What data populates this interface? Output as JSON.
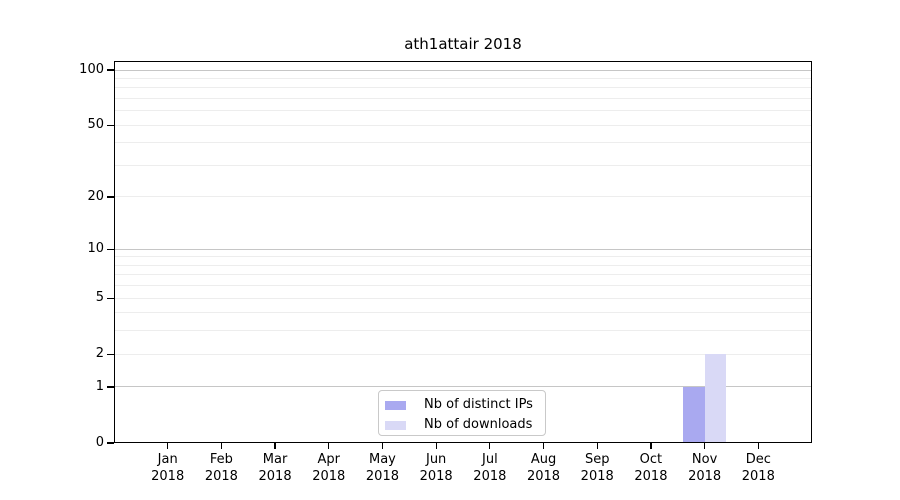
{
  "chart_data": {
    "type": "bar",
    "title": "ath1attair 2018",
    "categories": [
      "Jan",
      "Feb",
      "Mar",
      "Apr",
      "May",
      "Jun",
      "Jul",
      "Aug",
      "Sep",
      "Oct",
      "Nov",
      "Dec"
    ],
    "category_year": "2018",
    "series": [
      {
        "name": "Nb of distinct IPs",
        "color": "#a9a9f0",
        "values": [
          0,
          0,
          0,
          0,
          0,
          0,
          0,
          0,
          0,
          0,
          1,
          0
        ]
      },
      {
        "name": "Nb of downloads",
        "color": "#d9d9f6",
        "values": [
          0,
          0,
          0,
          0,
          0,
          0,
          0,
          0,
          0,
          0,
          2,
          0
        ]
      }
    ],
    "y_axis": {
      "scale": "log1p",
      "ylim": [
        0,
        112
      ],
      "ticks": [
        0,
        1,
        2,
        5,
        10,
        20,
        50,
        100
      ],
      "decade_ticks": [
        1,
        10,
        100
      ],
      "minor_gridline_values": [
        3,
        4,
        6,
        7,
        8,
        9,
        30,
        40,
        60,
        70,
        80,
        90
      ]
    },
    "grid": {
      "major_color": "#c6c6c6",
      "minor_color": "#ededed"
    },
    "legend": {
      "position": "lower center",
      "entries": [
        "Nb of distinct IPs",
        "Nb of downloads"
      ]
    },
    "colors": {
      "spine": "#000000",
      "text": "#000000",
      "background": "#ffffff"
    }
  }
}
